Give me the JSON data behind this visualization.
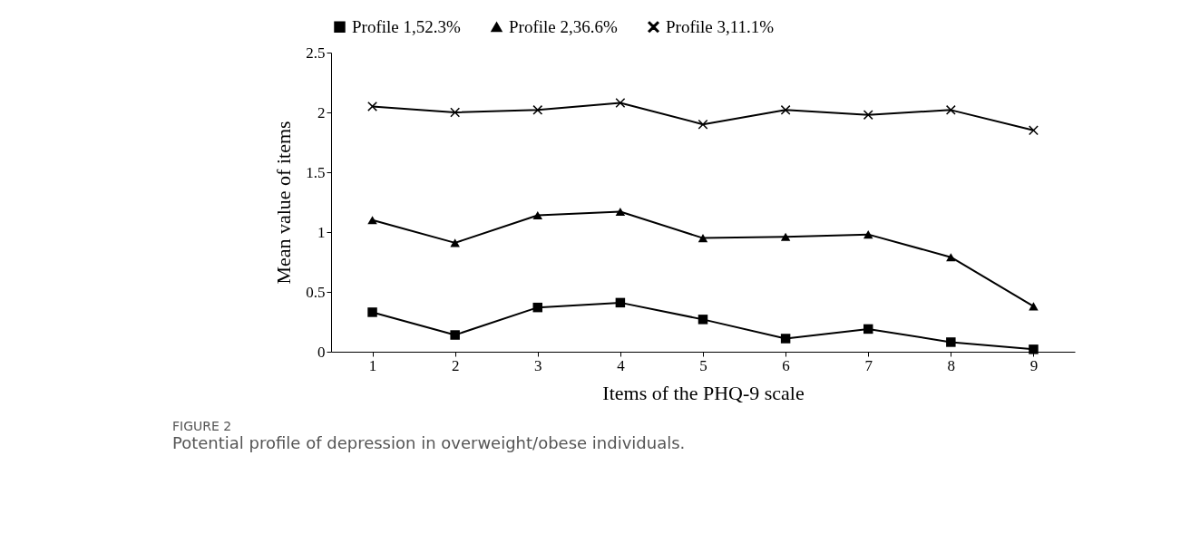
{
  "chart_data": {
    "type": "line",
    "xlabel": "Items of the PHQ-9 scale",
    "ylabel": "Mean value of items",
    "categories": [
      "1",
      "2",
      "3",
      "4",
      "5",
      "6",
      "7",
      "8",
      "9"
    ],
    "series": [
      {
        "name": "Profile 1,52.3%",
        "color": "#000000",
        "marker": "square",
        "values": [
          0.33,
          0.14,
          0.37,
          0.41,
          0.27,
          0.11,
          0.19,
          0.08,
          0.02
        ]
      },
      {
        "name": "Profile 2,36.6%",
        "color": "#000000",
        "marker": "triangle",
        "values": [
          1.1,
          0.91,
          1.14,
          1.17,
          0.95,
          0.96,
          0.98,
          0.79,
          0.38
        ]
      },
      {
        "name": "Profile 3,11.1%",
        "color": "#000000",
        "marker": "cross",
        "values": [
          2.05,
          2.0,
          2.02,
          2.08,
          1.9,
          2.02,
          1.98,
          2.02,
          1.85
        ]
      }
    ],
    "ylim": [
      0,
      2.5
    ],
    "yticks": [
      0,
      0.5,
      1,
      1.5,
      2,
      2.5
    ],
    "grid": false,
    "legend": "top",
    "line_style": "solid",
    "annotations": [
      "FIGURE 2",
      "Potential profile of depression in overweight/obese individuals."
    ]
  }
}
